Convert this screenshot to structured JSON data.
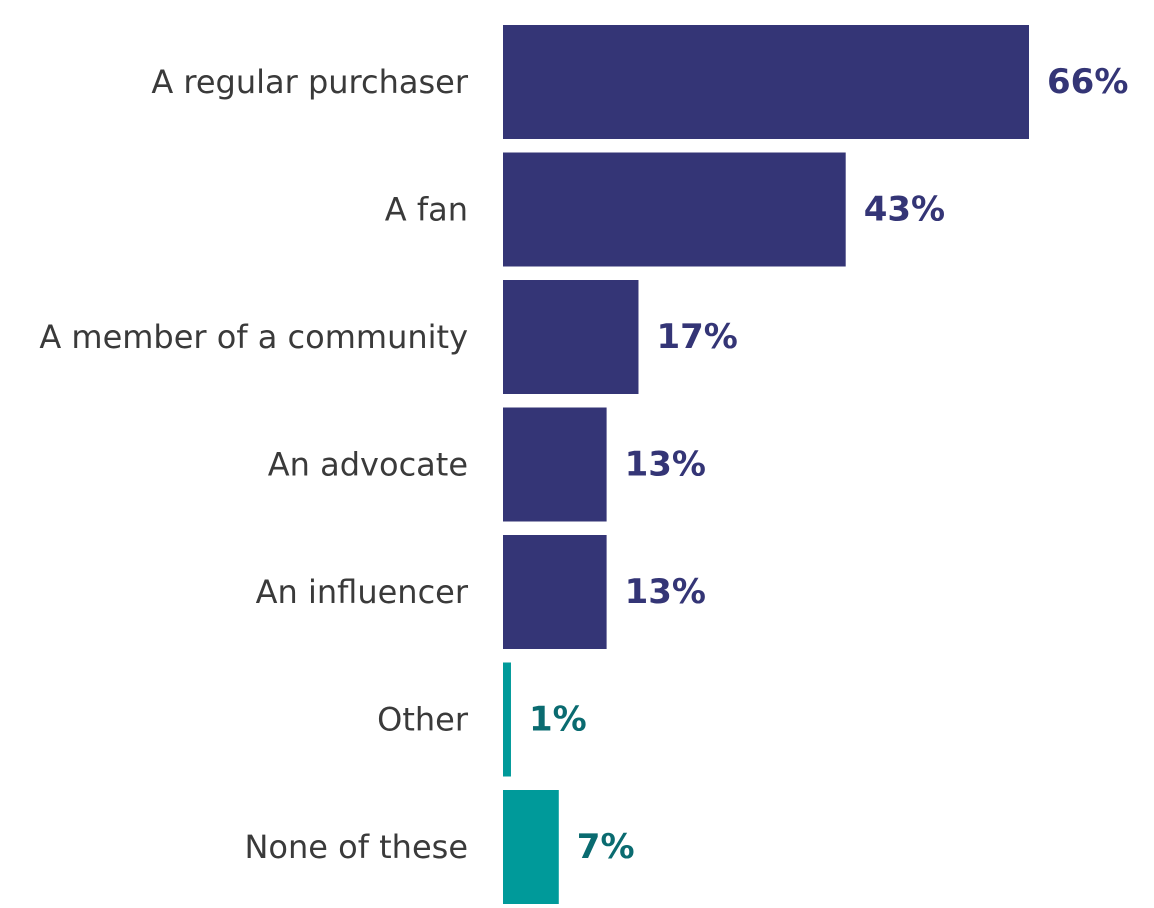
{
  "chart_data": {
    "type": "bar",
    "orientation": "horizontal",
    "categories": [
      "A regular purchaser",
      "A fan",
      "A member of a community",
      "An advocate",
      "An influencer",
      "Other",
      "None of these"
    ],
    "values": [
      66,
      43,
      17,
      13,
      13,
      1,
      7
    ],
    "value_labels": [
      "66%",
      "43%",
      "17%",
      "13%",
      "13%",
      "1%",
      "7%"
    ],
    "bar_colors": [
      "#343576",
      "#343576",
      "#343576",
      "#343576",
      "#343576",
      "#009a9a",
      "#009a9a"
    ],
    "label_colors": [
      "#343576",
      "#343576",
      "#343576",
      "#343576",
      "#343576",
      "#0a6b70",
      "#0a6b70"
    ],
    "title": "",
    "xlabel": "",
    "ylabel": "",
    "xlim": [
      0,
      66
    ],
    "grid": false,
    "legend": "none"
  }
}
